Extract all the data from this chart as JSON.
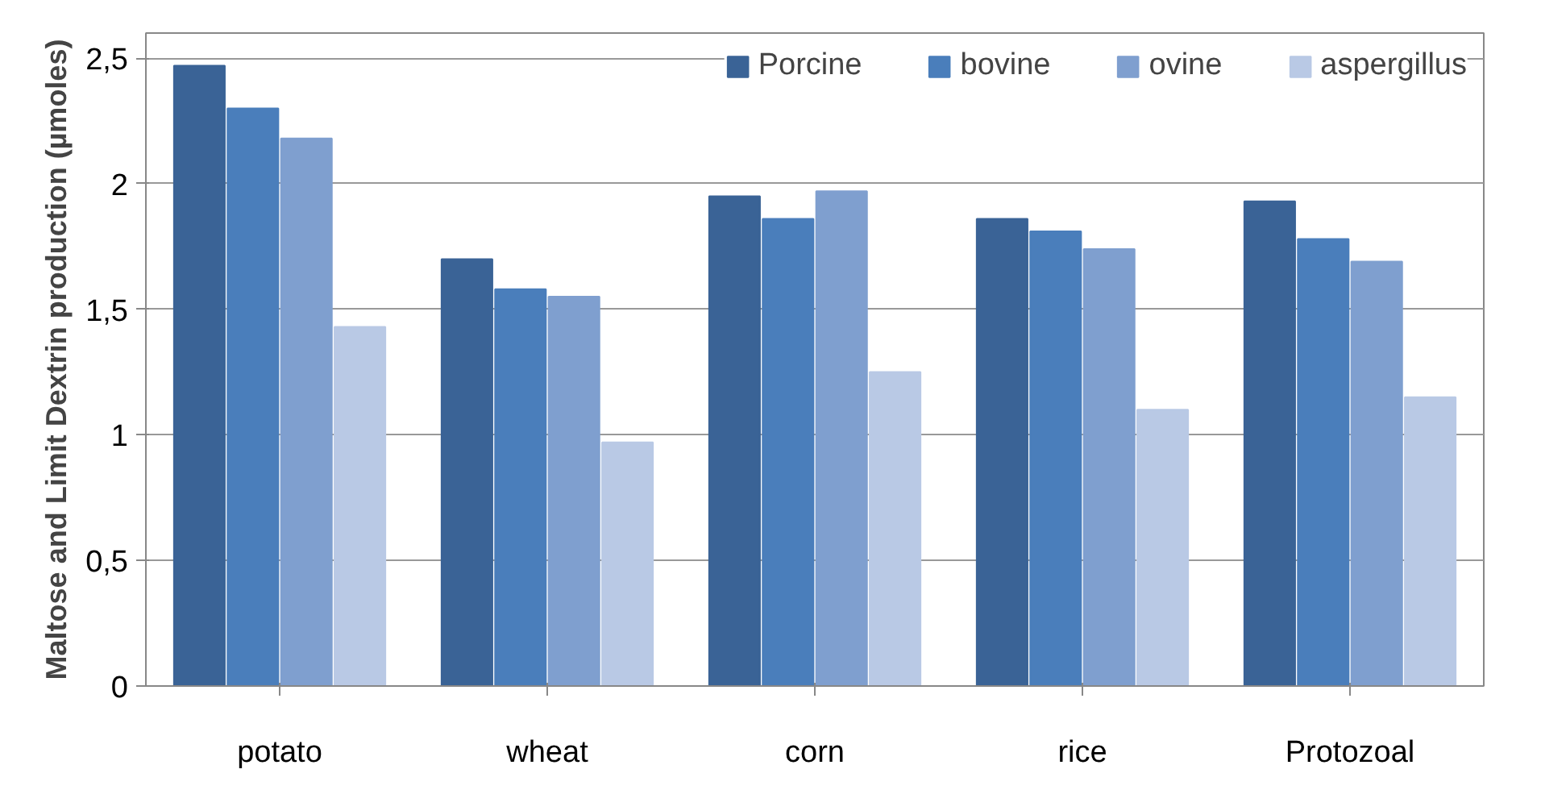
{
  "chart_data": {
    "type": "bar",
    "ylabel": "Maltose and Limit Dextrin production (µmoles)",
    "categories": [
      "potato",
      "wheat",
      "corn",
      "rice",
      "Protozoal"
    ],
    "series": [
      {
        "name": "Porcine",
        "color": "#3a6396",
        "values": [
          2.47,
          1.7,
          1.95,
          1.86,
          1.93
        ]
      },
      {
        "name": "bovine",
        "color": "#4a7ebb",
        "values": [
          2.3,
          1.58,
          1.86,
          1.81,
          1.78
        ]
      },
      {
        "name": "ovine",
        "color": "#7f9fcf",
        "values": [
          2.18,
          1.55,
          1.97,
          1.74,
          1.69
        ]
      },
      {
        "name": "aspergillus",
        "color": "#b9c9e5",
        "values": [
          1.43,
          0.97,
          1.25,
          1.1,
          1.15
        ]
      }
    ],
    "ylim": [
      0,
      2.6
    ],
    "yticks": [
      0,
      {
        "value": 0.5,
        "label": "0,5"
      },
      1,
      {
        "value": 1.5,
        "label": "1,5"
      },
      2,
      {
        "value": 2.5,
        "label": "2,5"
      }
    ],
    "grid": "y",
    "legend": "top right"
  }
}
